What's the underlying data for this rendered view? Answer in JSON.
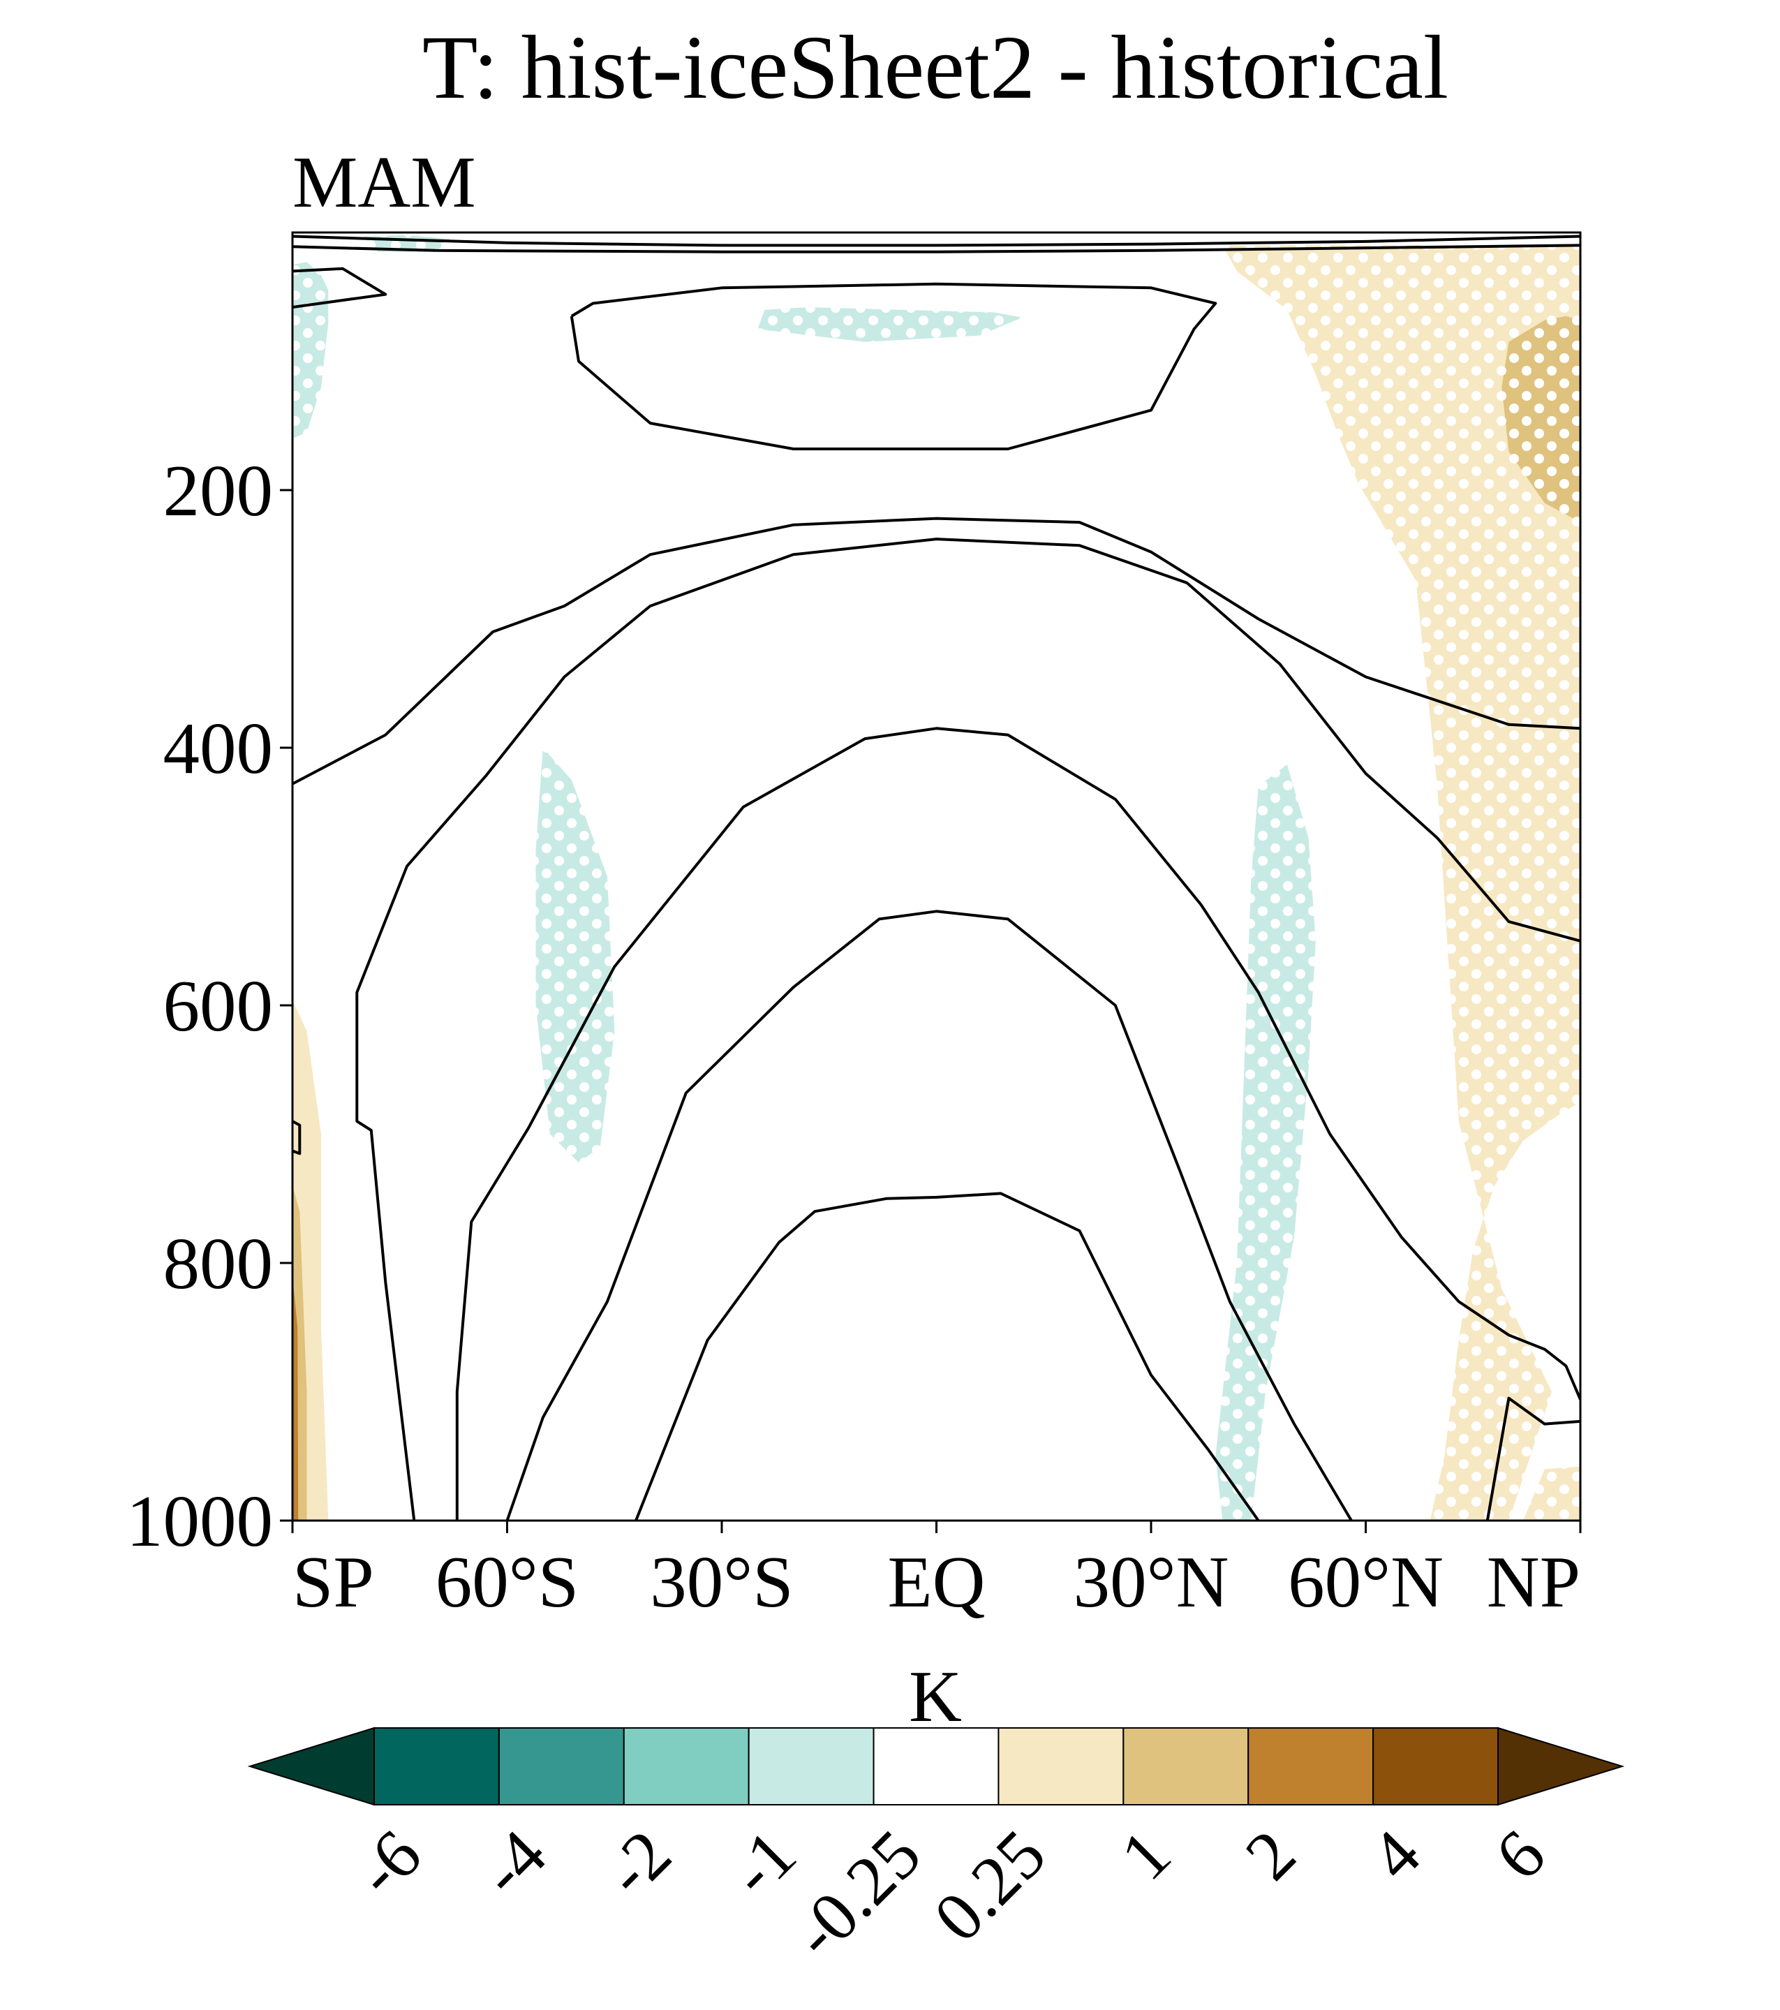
{
  "chart_data": {
    "type": "heatmap",
    "title": "T: hist-iceSheet2 - historical",
    "subtitle": "MAM",
    "xlabel": "",
    "ylabel": "",
    "colorbar_label": "K",
    "x_range": [
      -90,
      90
    ],
    "y_range": [
      0,
      1000
    ],
    "y_axis_inverted": true,
    "x_ticks": [
      {
        "value": -90,
        "label": "SP"
      },
      {
        "value": -60,
        "label": "60°S"
      },
      {
        "value": -30,
        "label": "30°S"
      },
      {
        "value": 0,
        "label": "EQ"
      },
      {
        "value": 30,
        "label": "30°N"
      },
      {
        "value": 60,
        "label": "60°N"
      },
      {
        "value": 90,
        "label": "NP"
      }
    ],
    "y_ticks": [
      {
        "value": 200,
        "label": "200"
      },
      {
        "value": 400,
        "label": "400"
      },
      {
        "value": 600,
        "label": "600"
      },
      {
        "value": 800,
        "label": "800"
      },
      {
        "value": 1000,
        "label": "1000"
      }
    ],
    "colorbar": {
      "levels": [
        "-6",
        "-4",
        "-2",
        "-1",
        "-0.25",
        "0.25",
        "1",
        "2",
        "4",
        "6"
      ],
      "colors": [
        "#003c30",
        "#01665e",
        "#35978f",
        "#80cdc1",
        "#c7eae5",
        "#ffffff",
        "#f6e8c3",
        "#dfc27d",
        "#bf812d",
        "#8c510a",
        "#543005"
      ],
      "extend": "both"
    },
    "contours": [
      {
        "points": [
          [
            -90,
            3
          ],
          [
            -60,
            8
          ],
          [
            -30,
            10
          ],
          [
            0,
            10
          ],
          [
            30,
            9
          ],
          [
            60,
            7
          ],
          [
            90,
            3
          ]
        ]
      },
      {
        "points": [
          [
            -90,
            11
          ],
          [
            -70,
            14
          ],
          [
            -30,
            15
          ],
          [
            0,
            15
          ],
          [
            30,
            14
          ],
          [
            60,
            12
          ],
          [
            90,
            10
          ]
        ]
      },
      {
        "points": [
          [
            -90,
            58
          ],
          [
            -77,
            48
          ],
          [
            -83,
            28
          ],
          [
            -90,
            30
          ]
        ]
      },
      {
        "points": [
          [
            -51,
            65
          ],
          [
            -48,
            55
          ],
          [
            -30,
            43
          ],
          [
            0,
            40
          ],
          [
            30,
            43
          ],
          [
            39,
            55
          ],
          [
            36,
            75
          ],
          [
            30,
            138
          ],
          [
            10,
            168
          ],
          [
            -20,
            168
          ],
          [
            -40,
            148
          ],
          [
            -50,
            100
          ],
          [
            -51,
            65
          ]
        ]
      },
      {
        "points": [
          [
            -90,
            428
          ],
          [
            -77,
            390
          ],
          [
            -62,
            310
          ],
          [
            -52,
            290
          ],
          [
            -40,
            250
          ],
          [
            -20,
            227
          ],
          [
            0,
            222
          ],
          [
            20,
            225
          ],
          [
            30,
            248
          ],
          [
            45,
            300
          ],
          [
            60,
            345
          ],
          [
            80,
            382
          ],
          [
            90,
            385
          ]
        ]
      },
      {
        "points": [
          [
            -73,
            1000
          ],
          [
            -77,
            815
          ],
          [
            -79,
            697
          ],
          [
            -81,
            690
          ],
          [
            -81,
            590
          ],
          [
            -74,
            492
          ],
          [
            -63,
            422
          ],
          [
            -52,
            345
          ],
          [
            -40,
            290
          ],
          [
            -20,
            250
          ],
          [
            0,
            238
          ],
          [
            20,
            243
          ],
          [
            35,
            272
          ],
          [
            48,
            335
          ],
          [
            60,
            420
          ],
          [
            70,
            470
          ],
          [
            80,
            535
          ],
          [
            90,
            550
          ]
        ]
      },
      {
        "points": [
          [
            -67,
            1000
          ],
          [
            -67,
            900
          ],
          [
            -65,
            768
          ],
          [
            -57,
            695
          ],
          [
            -45,
            570
          ],
          [
            -27,
            446
          ],
          [
            -10,
            393
          ],
          [
            0,
            385
          ],
          [
            10,
            390
          ],
          [
            25,
            440
          ],
          [
            37,
            522
          ],
          [
            45,
            590
          ],
          [
            55,
            700
          ],
          [
            65,
            780
          ],
          [
            73,
            830
          ],
          [
            80,
            856
          ],
          [
            85,
            867
          ],
          [
            88,
            880
          ],
          [
            90,
            906
          ]
        ]
      },
      {
        "points": [
          [
            -60,
            1000
          ],
          [
            -55,
            920
          ],
          [
            -46,
            830
          ],
          [
            -35,
            668
          ],
          [
            -20,
            586
          ],
          [
            -8,
            533
          ],
          [
            0,
            527
          ],
          [
            10,
            533
          ],
          [
            25,
            600
          ],
          [
            34,
            728
          ],
          [
            41,
            830
          ],
          [
            50,
            925
          ],
          [
            58,
            1000
          ]
        ]
      },
      {
        "points": [
          [
            -42,
            1000
          ],
          [
            -32,
            860
          ],
          [
            -22,
            784
          ],
          [
            -17,
            760
          ],
          [
            -7,
            750
          ],
          [
            0,
            749
          ],
          [
            9,
            746
          ],
          [
            20,
            775
          ],
          [
            30,
            887
          ],
          [
            38,
            945
          ],
          [
            45,
            1000
          ]
        ]
      },
      {
        "points": [
          [
            77,
            1000
          ],
          [
            80,
            905
          ],
          [
            85,
            925
          ],
          [
            90,
            923
          ]
        ]
      },
      {
        "points": [
          [
            -90,
            690
          ],
          [
            -89,
            693
          ],
          [
            -89,
            715
          ],
          [
            -90,
            713
          ]
        ]
      }
    ],
    "shaded_regions": [
      {
        "level_range": [
          "-1",
          "-0.25"
        ],
        "stippled": true,
        "points": [
          [
            -90,
            25
          ],
          [
            -88,
            23
          ],
          [
            -86,
            33
          ],
          [
            -85,
            45
          ],
          [
            -85,
            70
          ],
          [
            -86,
            120
          ],
          [
            -88,
            155
          ],
          [
            -90,
            160
          ]
        ]
      },
      {
        "level_range": [
          "-1",
          "-0.25"
        ],
        "stippled": true,
        "points": [
          [
            -80,
            3
          ],
          [
            -74,
            2
          ],
          [
            -68,
            5
          ],
          [
            -70,
            15
          ],
          [
            -78,
            15
          ]
        ]
      },
      {
        "level_range": [
          "-1",
          "-0.25"
        ],
        "stippled": true,
        "points": [
          [
            -24,
            60
          ],
          [
            -18,
            58
          ],
          [
            8,
            62
          ],
          [
            12,
            66
          ],
          [
            6,
            80
          ],
          [
            -10,
            85
          ],
          [
            -25,
            75
          ]
        ]
      },
      {
        "level_range": [
          "-1",
          "-0.25"
        ],
        "stippled": true,
        "points": [
          [
            -55,
            400
          ],
          [
            -51,
            425
          ],
          [
            -46,
            500
          ],
          [
            -45,
            620
          ],
          [
            -47,
            710
          ],
          [
            -50,
            722
          ],
          [
            -54,
            700
          ],
          [
            -56,
            600
          ],
          [
            -56,
            480
          ]
        ]
      },
      {
        "level_range": [
          "-1",
          "-0.25"
        ],
        "stippled": true,
        "points": [
          [
            45,
            430
          ],
          [
            49,
            413
          ],
          [
            52,
            470
          ],
          [
            53,
            550
          ],
          [
            52,
            650
          ],
          [
            50,
            780
          ],
          [
            46,
            900
          ],
          [
            44,
            1000
          ],
          [
            40,
            1000
          ],
          [
            39,
            950
          ],
          [
            42,
            800
          ],
          [
            43,
            650
          ],
          [
            44,
            500
          ]
        ]
      },
      {
        "level_range": [
          "0.25",
          "1"
        ],
        "stippled": true,
        "points": [
          [
            40,
            10
          ],
          [
            90,
            10
          ],
          [
            90,
            675
          ],
          [
            87,
            685
          ],
          [
            82,
            705
          ],
          [
            78,
            740
          ],
          [
            75,
            790
          ],
          [
            73,
            860
          ],
          [
            71,
            950
          ],
          [
            69,
            1000
          ],
          [
            82,
            1000
          ],
          [
            85,
            960
          ],
          [
            90,
            958
          ],
          [
            90,
            1000
          ],
          [
            80,
            1000
          ],
          [
            86,
            900
          ],
          [
            79,
            820
          ],
          [
            73,
            690
          ],
          [
            70,
            430
          ],
          [
            67,
            270
          ],
          [
            59,
            195
          ],
          [
            56,
            155
          ],
          [
            53,
            110
          ],
          [
            49,
            60
          ],
          [
            42,
            30
          ]
        ]
      },
      {
        "level_range": [
          "1",
          "2"
        ],
        "stippled": true,
        "points": [
          [
            90,
            68
          ],
          [
            88,
            65
          ],
          [
            85,
            68
          ],
          [
            80,
            85
          ],
          [
            79,
            120
          ],
          [
            80,
            170
          ],
          [
            85,
            210
          ],
          [
            90,
            225
          ]
        ]
      },
      {
        "level_range": [
          "0.25",
          "1"
        ],
        "stippled": false,
        "points": [
          [
            -90,
            596
          ],
          [
            -88,
            620
          ],
          [
            -86,
            700
          ],
          [
            -86,
            850
          ],
          [
            -85,
            1000
          ],
          [
            -90,
            1000
          ]
        ]
      },
      {
        "level_range": [
          "1",
          "2"
        ],
        "stippled": false,
        "points": [
          [
            -90,
            740
          ],
          [
            -89,
            760
          ],
          [
            -88,
            900
          ],
          [
            -88,
            1000
          ],
          [
            -90,
            1000
          ]
        ]
      },
      {
        "level_range": [
          "2",
          "4"
        ],
        "stippled": false,
        "points": [
          [
            -90,
            810
          ],
          [
            -89.3,
            850
          ],
          [
            -89.2,
            1000
          ],
          [
            -90,
            1000
          ]
        ]
      }
    ],
    "grid": false
  }
}
